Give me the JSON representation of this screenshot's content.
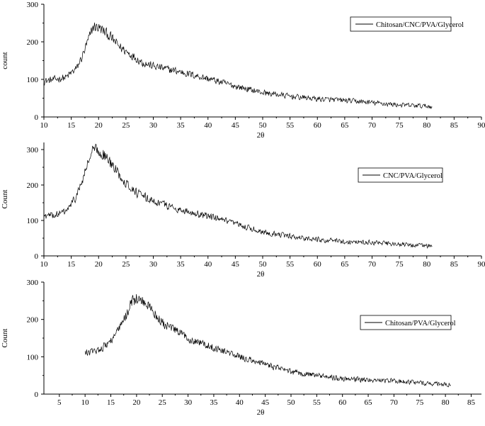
{
  "chart_data": [
    {
      "type": "line",
      "xlabel": "2θ",
      "ylabel": "count",
      "xlim": [
        10,
        90
      ],
      "ylim": [
        0,
        300
      ],
      "x_ticks": [
        "10",
        "15",
        "20",
        "25",
        "30",
        "35",
        "40",
        "45",
        "50",
        "55",
        "60",
        "65",
        "70",
        "75",
        "80",
        "85",
        "90"
      ],
      "y_ticks": [
        "0",
        "100",
        "200",
        "300"
      ],
      "legend": "top-right",
      "grid": false,
      "series": [
        {
          "name": "Chitosan/CNC/PVA/Glycerol",
          "x_range": [
            10,
            81
          ],
          "noise": 10,
          "profile": [
            [
              10,
              95
            ],
            [
              12,
              100
            ],
            [
              14,
              105
            ],
            [
              16,
              130
            ],
            [
              17,
              160
            ],
            [
              18,
              200
            ],
            [
              19,
              240
            ],
            [
              20,
              238
            ],
            [
              21,
              228
            ],
            [
              22,
              215
            ],
            [
              24,
              185
            ],
            [
              26,
              165
            ],
            [
              28,
              145
            ],
            [
              30,
              135
            ],
            [
              35,
              120
            ],
            [
              40,
              102
            ],
            [
              45,
              82
            ],
            [
              50,
              65
            ],
            [
              55,
              55
            ],
            [
              60,
              48
            ],
            [
              65,
              44
            ],
            [
              70,
              38
            ],
            [
              75,
              32
            ],
            [
              81,
              28
            ]
          ]
        }
      ]
    },
    {
      "type": "line",
      "xlabel": "2θ",
      "ylabel": "Count",
      "xlim": [
        10,
        90
      ],
      "ylim": [
        0,
        320
      ],
      "x_ticks": [
        "10",
        "15",
        "20",
        "25",
        "30",
        "35",
        "40",
        "45",
        "50",
        "55",
        "60",
        "65",
        "70",
        "75",
        "80",
        "85",
        "90"
      ],
      "y_ticks": [
        "0",
        "100",
        "200",
        "300"
      ],
      "legend": "top-right",
      "grid": false,
      "series": [
        {
          "name": "CNC/PVA/Glycerol",
          "x_range": [
            10,
            81
          ],
          "noise": 10,
          "profile": [
            [
              10,
              112
            ],
            [
              12,
              115
            ],
            [
              14,
              125
            ],
            [
              15,
              145
            ],
            [
              16,
              170
            ],
            [
              17,
              210
            ],
            [
              18,
              260
            ],
            [
              19,
              300
            ],
            [
              20,
              295
            ],
            [
              21,
              285
            ],
            [
              22,
              265
            ],
            [
              24,
              225
            ],
            [
              26,
              190
            ],
            [
              28,
              168
            ],
            [
              30,
              155
            ],
            [
              35,
              130
            ],
            [
              40,
              112
            ],
            [
              45,
              90
            ],
            [
              50,
              68
            ],
            [
              55,
              55
            ],
            [
              60,
              46
            ],
            [
              65,
              40
            ],
            [
              70,
              38
            ],
            [
              75,
              32
            ],
            [
              81,
              28
            ]
          ]
        }
      ]
    },
    {
      "type": "line",
      "xlabel": "2θ",
      "ylabel": "Count",
      "xlim": [
        2,
        87
      ],
      "ylim": [
        0,
        300
      ],
      "x_ticks": [
        "5",
        "10",
        "15",
        "20",
        "25",
        "30",
        "35",
        "40",
        "45",
        "50",
        "55",
        "60",
        "65",
        "70",
        "75",
        "80",
        "85"
      ],
      "y_ticks": [
        "0",
        "100",
        "200",
        "300"
      ],
      "legend": "top-right",
      "grid": false,
      "series": [
        {
          "name": "Chitosan/PVA/Glycerol",
          "x_range": [
            10,
            81
          ],
          "noise": 10,
          "profile": [
            [
              10,
              110
            ],
            [
              12,
              115
            ],
            [
              14,
              130
            ],
            [
              16,
              160
            ],
            [
              18,
              210
            ],
            [
              19,
              250
            ],
            [
              20,
              255
            ],
            [
              21,
              250
            ],
            [
              22,
              240
            ],
            [
              23,
              225
            ],
            [
              25,
              190
            ],
            [
              27,
              175
            ],
            [
              30,
              150
            ],
            [
              35,
              125
            ],
            [
              40,
              100
            ],
            [
              45,
              80
            ],
            [
              50,
              60
            ],
            [
              55,
              50
            ],
            [
              60,
              42
            ],
            [
              65,
              38
            ],
            [
              70,
              35
            ],
            [
              75,
              30
            ],
            [
              81,
              25
            ]
          ]
        }
      ]
    }
  ]
}
